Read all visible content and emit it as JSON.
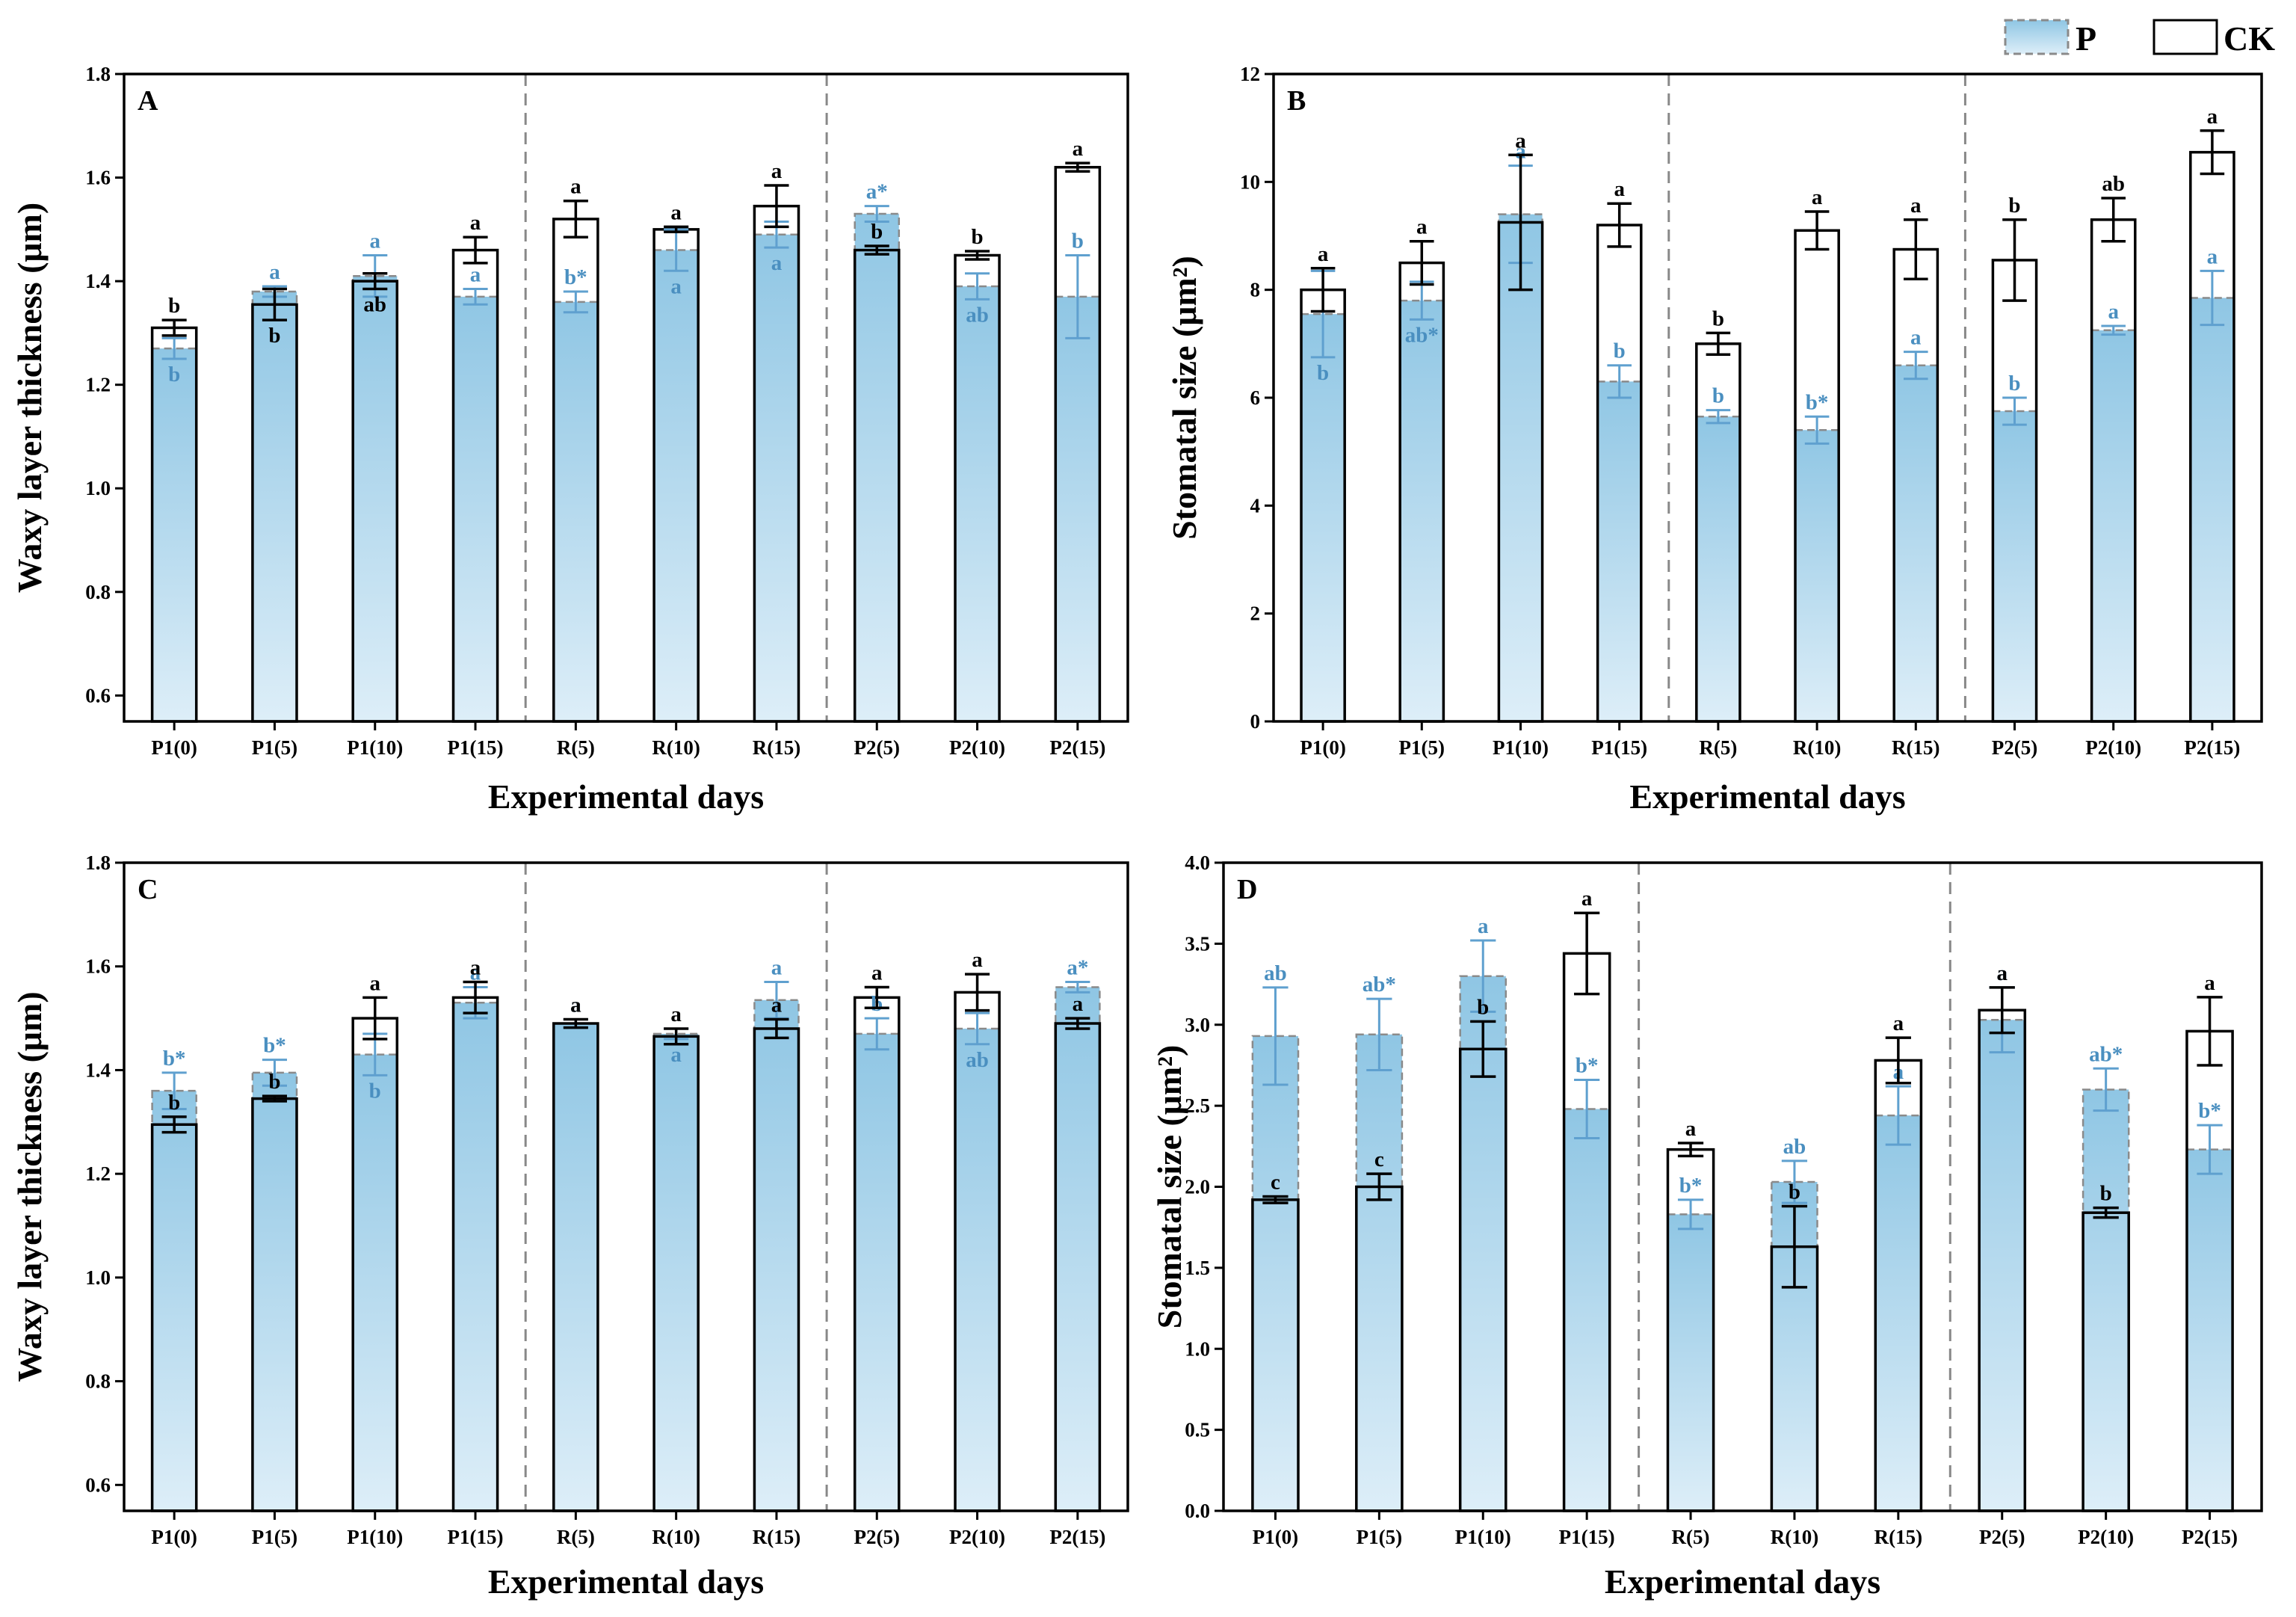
{
  "legend": {
    "p_label": "P",
    "ck_label": "CK"
  },
  "colors": {
    "p_fill_top": "#8fc6e4",
    "p_fill_bottom": "#ddeef8",
    "p_stroke": "#8a8a8a",
    "p_letter": "#4a8fc0",
    "p_err": "#5fa0cf",
    "ck_stroke": "#000000",
    "ck_letter": "#000000",
    "divider": "#888888"
  },
  "chart_data": [
    {
      "id": "A",
      "type": "bar",
      "panel_label": "A",
      "xlabel": "Experimental days",
      "ylabel": "Waxy layer thickness (μm)",
      "ylim": [
        0.55,
        1.8
      ],
      "yticks": [
        0.6,
        0.8,
        1.0,
        1.2,
        1.4,
        1.6,
        1.8
      ],
      "ytick_labels": [
        "0.6",
        "0.8",
        "1.0",
        "1.2",
        "1.4",
        "1.6",
        "1.8"
      ],
      "categories": [
        "P1(0)",
        "P1(5)",
        "P1(10)",
        "P1(15)",
        "R(5)",
        "R(10)",
        "R(15)",
        "P2(5)",
        "P2(10)",
        "P2(15)"
      ],
      "dividers_after": [
        3,
        6
      ],
      "series": [
        {
          "name": "P",
          "values": [
            1.27,
            1.38,
            1.41,
            1.37,
            1.36,
            1.46,
            1.49,
            1.53,
            1.39,
            1.37
          ],
          "errors": [
            0.02,
            0.01,
            0.04,
            0.015,
            0.02,
            0.04,
            0.025,
            0.015,
            0.025,
            0.08
          ],
          "letters": [
            "b",
            "a",
            "a",
            "a",
            "b*",
            "a",
            "a",
            "a*",
            "ab",
            "b"
          ],
          "letter_pos": [
            "below",
            "above",
            "above",
            "above",
            "above",
            "below",
            "below",
            "above",
            "below",
            "above"
          ]
        },
        {
          "name": "CK",
          "values": [
            1.31,
            1.355,
            1.4,
            1.46,
            1.52,
            1.5,
            1.545,
            1.46,
            1.45,
            1.62
          ],
          "errors": [
            0.015,
            0.03,
            0.015,
            0.025,
            0.035,
            0.005,
            0.04,
            0.008,
            0.008,
            0.008
          ],
          "letters": [
            "b",
            "b",
            "ab",
            "a",
            "a",
            "a",
            "a",
            "b",
            "b",
            "a"
          ],
          "letter_pos": [
            "above",
            "below",
            "below",
            "above",
            "above",
            "above",
            "above",
            "above",
            "above",
            "above"
          ]
        }
      ]
    },
    {
      "id": "B",
      "type": "bar",
      "panel_label": "B",
      "xlabel": "Experimental days",
      "ylabel": "Stomatal size (μm²)",
      "ylim": [
        0,
        12
      ],
      "yticks": [
        0,
        2,
        4,
        6,
        8,
        10,
        12
      ],
      "ytick_labels": [
        "0",
        "2",
        "4",
        "6",
        "8",
        "10",
        "12"
      ],
      "categories": [
        "P1(0)",
        "P1(5)",
        "P1(10)",
        "P1(15)",
        "R(5)",
        "R(10)",
        "R(15)",
        "P2(5)",
        "P2(10)",
        "P2(15)"
      ],
      "dividers_after": [
        3,
        6
      ],
      "series": [
        {
          "name": "P",
          "values": [
            7.55,
            7.8,
            9.4,
            6.3,
            5.65,
            5.4,
            6.6,
            5.75,
            7.25,
            7.85
          ],
          "errors": [
            0.8,
            0.35,
            0.9,
            0.3,
            0.12,
            0.25,
            0.25,
            0.25,
            0.08,
            0.5
          ],
          "letters": [
            "b",
            "ab*",
            "a",
            "b",
            "b",
            "b*",
            "a",
            "b",
            "a",
            "a"
          ],
          "letter_pos": [
            "below",
            "below",
            "above",
            "above",
            "above",
            "above",
            "above",
            "above",
            "above",
            "above"
          ]
        },
        {
          "name": "CK",
          "values": [
            8.0,
            8.5,
            9.25,
            9.2,
            7.0,
            9.1,
            8.75,
            8.55,
            9.3,
            10.55
          ],
          "errors": [
            0.4,
            0.4,
            1.25,
            0.4,
            0.2,
            0.35,
            0.55,
            0.75,
            0.4,
            0.4
          ],
          "letters": [
            "a",
            "a",
            "a",
            "a",
            "b",
            "a",
            "a",
            "b",
            "ab",
            "a"
          ],
          "letter_pos": [
            "above",
            "above",
            "above",
            "above",
            "above",
            "above",
            "above",
            "above",
            "above",
            "above"
          ]
        }
      ]
    },
    {
      "id": "C",
      "type": "bar",
      "panel_label": "C",
      "xlabel": "Experimental days",
      "ylabel": "Waxy layer thickness (μm)",
      "ylim": [
        0.55,
        1.8
      ],
      "yticks": [
        0.6,
        0.8,
        1.0,
        1.2,
        1.4,
        1.6,
        1.8
      ],
      "ytick_labels": [
        "0.6",
        "0.8",
        "1.0",
        "1.2",
        "1.4",
        "1.6",
        "1.8"
      ],
      "categories": [
        "P1(0)",
        "P1(5)",
        "P1(10)",
        "P1(15)",
        "R(5)",
        "R(10)",
        "R(15)",
        "P2(5)",
        "P2(10)",
        "P2(15)"
      ],
      "dividers_after": [
        3,
        6
      ],
      "series": [
        {
          "name": "P",
          "values": [
            1.36,
            1.395,
            1.43,
            1.53,
            1.49,
            1.47,
            1.535,
            1.47,
            1.48,
            1.56
          ],
          "errors": [
            0.035,
            0.025,
            0.04,
            0.03,
            0.008,
            0.01,
            0.035,
            0.03,
            0.03,
            0.01
          ],
          "letters": [
            "b*",
            "b*",
            "b",
            "a",
            "a",
            "a",
            "a",
            "b",
            "ab",
            "a*"
          ],
          "letter_pos": [
            "above",
            "above",
            "below",
            "above",
            "above",
            "below",
            "above",
            "above",
            "below",
            "above"
          ]
        },
        {
          "name": "CK",
          "values": [
            1.295,
            1.345,
            1.5,
            1.54,
            1.49,
            1.465,
            1.48,
            1.54,
            1.55,
            1.49
          ],
          "errors": [
            0.015,
            0.005,
            0.04,
            0.03,
            0.008,
            0.015,
            0.018,
            0.02,
            0.035,
            0.01
          ],
          "letters": [
            "b",
            "b",
            "a",
            "a",
            "a",
            "a",
            "a",
            "a",
            "a",
            "a"
          ],
          "letter_pos": [
            "above",
            "above",
            "above",
            "above",
            "above",
            "above",
            "above",
            "above",
            "above",
            "above"
          ]
        }
      ]
    },
    {
      "id": "D",
      "type": "bar",
      "panel_label": "D",
      "xlabel": "Experimental days",
      "ylabel": "Stomatal size (μm²)",
      "ylim": [
        0,
        4.0
      ],
      "yticks": [
        0,
        0.5,
        1.0,
        1.5,
        2.0,
        2.5,
        3.0,
        3.5,
        4.0
      ],
      "ytick_labels": [
        "0.0",
        "0.5",
        "1.0",
        "1.5",
        "2.0",
        "2.5",
        "3.0",
        "3.5",
        "4.0"
      ],
      "categories": [
        "P1(0)",
        "P1(5)",
        "P1(10)",
        "P1(15)",
        "R(5)",
        "R(10)",
        "R(15)",
        "P2(5)",
        "P2(10)",
        "P2(15)"
      ],
      "dividers_after": [
        3,
        6
      ],
      "series": [
        {
          "name": "P",
          "values": [
            2.93,
            2.94,
            3.3,
            2.48,
            1.83,
            2.03,
            2.44,
            3.03,
            2.6,
            2.23
          ],
          "errors": [
            0.3,
            0.22,
            0.22,
            0.18,
            0.09,
            0.13,
            0.18,
            0.2,
            0.13,
            0.15
          ],
          "letters": [
            "ab",
            "ab*",
            "a",
            "b*",
            "b*",
            "ab",
            "a",
            "a",
            "ab*",
            "b*"
          ],
          "letter_pos": [
            "above",
            "above",
            "above",
            "above",
            "above",
            "above",
            "above",
            "above",
            "above",
            "above"
          ]
        },
        {
          "name": "CK",
          "values": [
            1.92,
            2.0,
            2.85,
            3.44,
            2.23,
            1.63,
            2.78,
            3.09,
            1.84,
            2.96
          ],
          "errors": [
            0.02,
            0.08,
            0.17,
            0.25,
            0.04,
            0.25,
            0.14,
            0.14,
            0.03,
            0.21
          ],
          "letters": [
            "c",
            "c",
            "b",
            "a",
            "a",
            "b",
            "a",
            "a",
            "b",
            "a"
          ],
          "letter_pos": [
            "above",
            "above",
            "above",
            "above",
            "above",
            "above",
            "above",
            "above",
            "above",
            "above"
          ]
        }
      ]
    }
  ]
}
